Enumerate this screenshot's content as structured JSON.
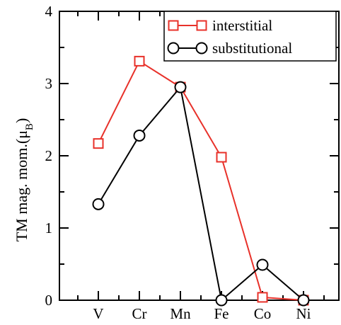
{
  "chart_data": {
    "type": "line",
    "categories": [
      "V",
      "Cr",
      "Mn",
      "Fe",
      "Co",
      "Ni"
    ],
    "series": [
      {
        "name": "interstitial",
        "values": [
          2.17,
          3.31,
          2.95,
          1.98,
          0.04,
          0.0
        ],
        "color": "#e8312a",
        "marker": "square"
      },
      {
        "name": "substitutional",
        "values": [
          1.33,
          2.28,
          2.95,
          0.0,
          0.49,
          0.0
        ],
        "color": "#000000",
        "marker": "circle"
      }
    ],
    "ylabel_main": "TM mag. mom.(μ",
    "ylabel_sub": "B",
    "ylabel_close": ")",
    "ylim": [
      0,
      4
    ],
    "yticks": [
      "0",
      "1",
      "2",
      "3",
      "4"
    ],
    "legend_position": "top-right"
  }
}
